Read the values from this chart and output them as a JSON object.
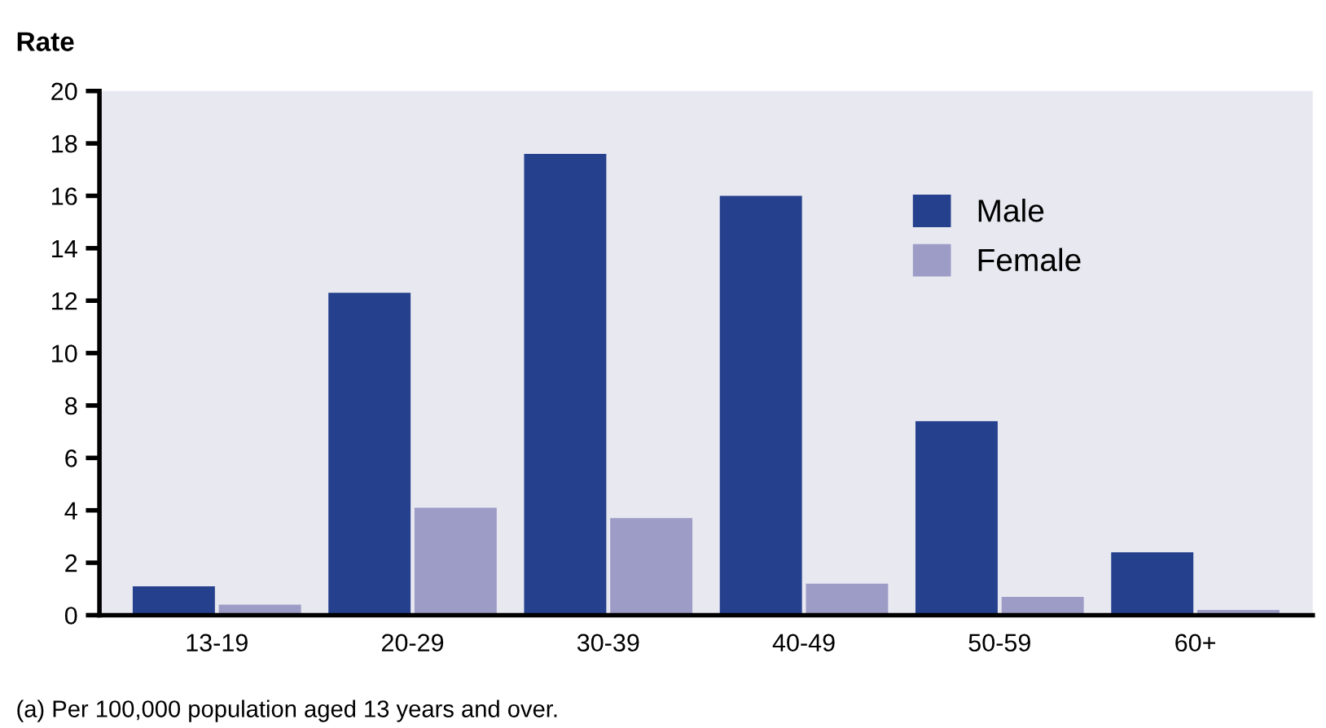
{
  "chart_data": {
    "type": "bar",
    "ylabel": "Rate",
    "categories": [
      "13-19",
      "20-29",
      "30-39",
      "40-49",
      "50-59",
      "60+"
    ],
    "series": [
      {
        "name": "Male",
        "color": "#25408c",
        "values": [
          1.1,
          12.3,
          17.6,
          16.0,
          7.4,
          2.4
        ]
      },
      {
        "name": "Female",
        "color": "#9d9cc6",
        "values": [
          0.4,
          4.1,
          3.7,
          1.2,
          0.7,
          0.2
        ]
      }
    ],
    "ylim": [
      0,
      20
    ],
    "yticks": [
      0,
      2,
      4,
      6,
      8,
      10,
      12,
      14,
      16,
      18,
      20
    ],
    "grid": false,
    "legend": "top right",
    "annotations": [
      "(a) Per 100,000 population aged 13 years and over."
    ]
  }
}
